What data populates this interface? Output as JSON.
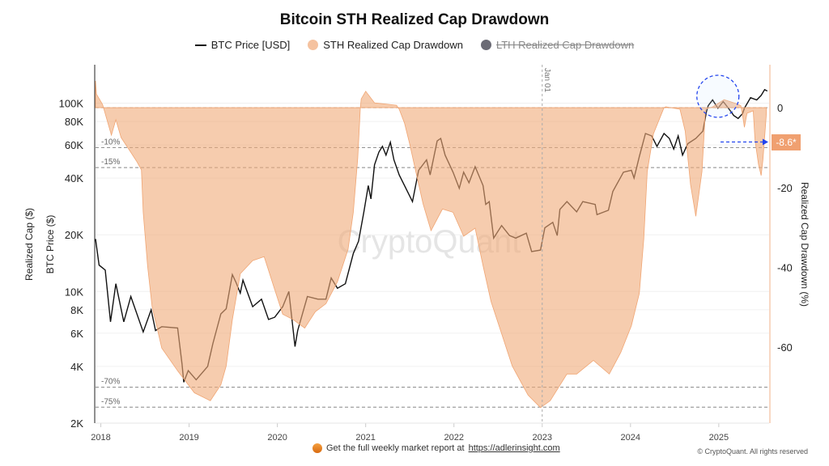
{
  "chart_data": {
    "type": "line",
    "title": "Bitcoin STH Realized Cap Drawdown",
    "legend": [
      {
        "label": "BTC Price [USD]",
        "color": "#111111",
        "enabled": true
      },
      {
        "label": "STH Realized Cap Drawdown",
        "color": "#f5c29f",
        "enabled": true
      },
      {
        "label": "LTH Realized Cap Drawdown",
        "color": "#6b6b75",
        "enabled": false
      }
    ],
    "legend_position": "top-center",
    "left_axis": {
      "labels": [
        "Realized Cap ($)",
        "BTC Price ($)"
      ],
      "scale": "log",
      "ylim": [
        2000,
        160000
      ],
      "ticks": [
        {
          "v": 100000,
          "l": "100K"
        },
        {
          "v": 80000,
          "l": "80K"
        },
        {
          "v": 60000,
          "l": "60K"
        },
        {
          "v": 40000,
          "l": "40K"
        },
        {
          "v": 20000,
          "l": "20K"
        },
        {
          "v": 10000,
          "l": "10K"
        },
        {
          "v": 8000,
          "l": "8K"
        },
        {
          "v": 6000,
          "l": "6K"
        },
        {
          "v": 4000,
          "l": "4K"
        },
        {
          "v": 2000,
          "l": "2K"
        }
      ]
    },
    "right_axis": {
      "label": "Realized Cap Drawdown (%)",
      "ylim": [
        -79,
        6.7
      ],
      "ticks": [
        {
          "v": 0,
          "l": "0"
        },
        {
          "v": -20,
          "l": "-20"
        },
        {
          "v": -40,
          "l": "-40"
        },
        {
          "v": -60,
          "l": "-60"
        }
      ]
    },
    "x_axis": {
      "xlim": [
        2017.94,
        2025.57
      ],
      "ticks": [
        {
          "v": 2018,
          "l": "2018"
        },
        {
          "v": 2019,
          "l": "2019"
        },
        {
          "v": 2020,
          "l": "2020"
        },
        {
          "v": 2021,
          "l": "2021"
        },
        {
          "v": 2022,
          "l": "2022"
        },
        {
          "v": 2023,
          "l": "2023"
        },
        {
          "v": 2024,
          "l": "2024"
        },
        {
          "v": 2025,
          "l": "2025"
        }
      ]
    },
    "reference_lines": [
      {
        "v": 0,
        "l": ""
      },
      {
        "v": -10,
        "l": "-10%"
      },
      {
        "v": -15,
        "l": "-15%"
      },
      {
        "v": -70,
        "l": "-70%"
      },
      {
        "v": -75,
        "l": "-75%"
      }
    ],
    "vertical_marker": {
      "x": 2023.0,
      "label": "Jan 01"
    },
    "current_value_label": "-8.6*",
    "current_value": -8.6,
    "highlight_circle_x": 2024.99,
    "series": [
      {
        "name": "BTC Price [USD]",
        "axis": "left",
        "points": [
          [
            2017.94,
            19000
          ],
          [
            2017.98,
            13800
          ],
          [
            2018.05,
            13000
          ],
          [
            2018.11,
            6900
          ],
          [
            2018.17,
            11000
          ],
          [
            2018.26,
            6900
          ],
          [
            2018.34,
            9400
          ],
          [
            2018.48,
            6100
          ],
          [
            2018.57,
            8000
          ],
          [
            2018.62,
            6200
          ],
          [
            2018.69,
            6500
          ],
          [
            2018.87,
            6400
          ],
          [
            2018.92,
            4100
          ],
          [
            2018.94,
            3300
          ],
          [
            2018.99,
            3800
          ],
          [
            2019.08,
            3400
          ],
          [
            2019.21,
            4000
          ],
          [
            2019.27,
            5300
          ],
          [
            2019.36,
            7600
          ],
          [
            2019.42,
            8100
          ],
          [
            2019.49,
            12300
          ],
          [
            2019.53,
            11200
          ],
          [
            2019.58,
            9800
          ],
          [
            2019.61,
            11500
          ],
          [
            2019.72,
            8300
          ],
          [
            2019.82,
            9100
          ],
          [
            2019.9,
            7100
          ],
          [
            2019.97,
            7300
          ],
          [
            2020.06,
            8300
          ],
          [
            2020.13,
            10000
          ],
          [
            2020.2,
            5100
          ],
          [
            2020.23,
            6200
          ],
          [
            2020.34,
            9400
          ],
          [
            2020.46,
            9100
          ],
          [
            2020.55,
            9100
          ],
          [
            2020.61,
            11800
          ],
          [
            2020.68,
            10400
          ],
          [
            2020.77,
            11000
          ],
          [
            2020.86,
            15900
          ],
          [
            2020.92,
            18500
          ],
          [
            2020.98,
            26500
          ],
          [
            2021.03,
            36500
          ],
          [
            2021.06,
            31000
          ],
          [
            2021.1,
            47000
          ],
          [
            2021.15,
            55000
          ],
          [
            2021.19,
            59000
          ],
          [
            2021.23,
            53000
          ],
          [
            2021.28,
            62000
          ],
          [
            2021.32,
            50000
          ],
          [
            2021.38,
            41600
          ],
          [
            2021.44,
            36500
          ],
          [
            2021.53,
            30000
          ],
          [
            2021.6,
            44000
          ],
          [
            2021.69,
            50000
          ],
          [
            2021.73,
            41600
          ],
          [
            2021.81,
            63000
          ],
          [
            2021.85,
            65000
          ],
          [
            2021.9,
            53000
          ],
          [
            2021.99,
            43000
          ],
          [
            2022.06,
            35300
          ],
          [
            2022.11,
            43000
          ],
          [
            2022.17,
            37800
          ],
          [
            2022.24,
            46000
          ],
          [
            2022.33,
            36500
          ],
          [
            2022.36,
            29000
          ],
          [
            2022.4,
            30000
          ],
          [
            2022.45,
            19200
          ],
          [
            2022.54,
            22400
          ],
          [
            2022.63,
            19800
          ],
          [
            2022.7,
            19200
          ],
          [
            2022.82,
            20400
          ],
          [
            2022.88,
            16300
          ],
          [
            2022.98,
            16600
          ],
          [
            2023.03,
            21800
          ],
          [
            2023.12,
            23300
          ],
          [
            2023.17,
            19800
          ],
          [
            2023.2,
            27300
          ],
          [
            2023.28,
            30000
          ],
          [
            2023.39,
            26500
          ],
          [
            2023.46,
            30000
          ],
          [
            2023.6,
            29000
          ],
          [
            2023.62,
            25600
          ],
          [
            2023.75,
            27000
          ],
          [
            2023.8,
            34000
          ],
          [
            2023.92,
            43000
          ],
          [
            2024.01,
            44000
          ],
          [
            2024.04,
            40000
          ],
          [
            2024.1,
            52000
          ],
          [
            2024.17,
            69000
          ],
          [
            2024.24,
            67000
          ],
          [
            2024.3,
            59000
          ],
          [
            2024.38,
            69000
          ],
          [
            2024.44,
            65000
          ],
          [
            2024.49,
            57000
          ],
          [
            2024.54,
            67000
          ],
          [
            2024.59,
            53000
          ],
          [
            2024.65,
            61000
          ],
          [
            2024.74,
            65000
          ],
          [
            2024.82,
            71000
          ],
          [
            2024.86,
            90000
          ],
          [
            2024.88,
            97000
          ],
          [
            2024.93,
            104000
          ],
          [
            2024.99,
            94000
          ],
          [
            2025.05,
            102000
          ],
          [
            2025.11,
            94000
          ],
          [
            2025.17,
            86000
          ],
          [
            2025.22,
            83000
          ],
          [
            2025.27,
            88000
          ],
          [
            2025.29,
            94000
          ],
          [
            2025.36,
            107000
          ],
          [
            2025.43,
            104000
          ],
          [
            2025.48,
            110000
          ],
          [
            2025.52,
            118000
          ],
          [
            2025.55,
            116000
          ]
        ]
      },
      {
        "name": "STH Realized Cap Drawdown",
        "axis": "right",
        "points": [
          [
            2017.94,
            6.7
          ],
          [
            2017.95,
            3.4
          ],
          [
            2018.02,
            0.8
          ],
          [
            2018.12,
            -6.9
          ],
          [
            2018.17,
            -3.0
          ],
          [
            2018.23,
            -7.5
          ],
          [
            2018.32,
            -10.5
          ],
          [
            2018.41,
            -13.6
          ],
          [
            2018.46,
            -15.6
          ],
          [
            2018.48,
            -26.2
          ],
          [
            2018.53,
            -39.6
          ],
          [
            2018.58,
            -49.7
          ],
          [
            2018.69,
            -60.2
          ],
          [
            2018.87,
            -65.9
          ],
          [
            2019.06,
            -71.4
          ],
          [
            2019.24,
            -73.4
          ],
          [
            2019.36,
            -69.4
          ],
          [
            2019.42,
            -64.7
          ],
          [
            2019.49,
            -53.1
          ],
          [
            2019.58,
            -41.6
          ],
          [
            2019.72,
            -38.3
          ],
          [
            2019.85,
            -37.3
          ],
          [
            2019.97,
            -45.6
          ],
          [
            2020.06,
            -51.7
          ],
          [
            2020.18,
            -53.1
          ],
          [
            2020.31,
            -55.2
          ],
          [
            2020.43,
            -51.1
          ],
          [
            2020.55,
            -49.1
          ],
          [
            2020.68,
            -43.6
          ],
          [
            2020.8,
            -35.5
          ],
          [
            2020.86,
            -26.2
          ],
          [
            2020.91,
            -12.6
          ],
          [
            2020.94,
            0
          ],
          [
            2020.95,
            2.2
          ],
          [
            2021.0,
            4.1
          ],
          [
            2021.1,
            1.2
          ],
          [
            2021.35,
            0.6
          ],
          [
            2021.38,
            -0.4
          ],
          [
            2021.44,
            -3.9
          ],
          [
            2021.5,
            -9.2
          ],
          [
            2021.56,
            -15.2
          ],
          [
            2021.65,
            -24.1
          ],
          [
            2021.74,
            -30.8
          ],
          [
            2021.87,
            -25.4
          ],
          [
            2021.99,
            -26.2
          ],
          [
            2022.11,
            -32.2
          ],
          [
            2022.24,
            -30.2
          ],
          [
            2022.33,
            -39.6
          ],
          [
            2022.42,
            -48.5
          ],
          [
            2022.54,
            -56.6
          ],
          [
            2022.66,
            -64.7
          ],
          [
            2022.84,
            -72.0
          ],
          [
            2022.98,
            -75.1
          ],
          [
            2023.09,
            -73.4
          ],
          [
            2023.28,
            -66.7
          ],
          [
            2023.39,
            -66.7
          ],
          [
            2023.58,
            -63.3
          ],
          [
            2023.76,
            -66.7
          ],
          [
            2023.89,
            -61.3
          ],
          [
            2024.01,
            -54.6
          ],
          [
            2024.1,
            -46.5
          ],
          [
            2024.15,
            -32.9
          ],
          [
            2024.19,
            -16.0
          ],
          [
            2024.26,
            -6.5
          ],
          [
            2024.38,
            0
          ],
          [
            2024.4,
            0.2
          ],
          [
            2024.56,
            -0.4
          ],
          [
            2024.62,
            -5.9
          ],
          [
            2024.68,
            -19.3
          ],
          [
            2024.74,
            -27.2
          ],
          [
            2024.81,
            -16.0
          ],
          [
            2024.85,
            -0.4
          ],
          [
            2024.93,
            0.2
          ],
          [
            2025.06,
            2.0
          ],
          [
            2025.2,
            1.0
          ],
          [
            2025.25,
            0.5
          ],
          [
            2025.27,
            -2.0
          ],
          [
            2025.29,
            -4.9
          ],
          [
            2025.32,
            -1.4
          ],
          [
            2025.39,
            -0.8
          ],
          [
            2025.41,
            -8.1
          ],
          [
            2025.45,
            -14.2
          ],
          [
            2025.48,
            -17.0
          ],
          [
            2025.5,
            -13.0
          ],
          [
            2025.54,
            -1.4
          ]
        ]
      }
    ]
  },
  "watermark": "CryptoQuant",
  "footer": {
    "text": "Get the full weekly market report at",
    "link": "https://adlerinsight.com",
    "copyright": "© CryptoQuant. All rights reserved"
  }
}
